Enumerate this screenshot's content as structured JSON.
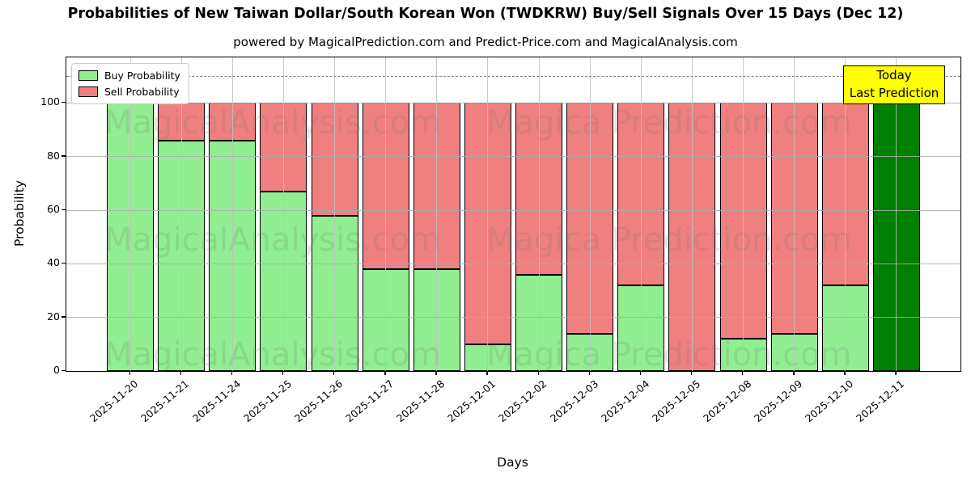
{
  "figure": {
    "title": "Probabilities of New Taiwan Dollar/South Korean Won (TWDKRW) Buy/Sell Signals Over 15 Days (Dec 12)",
    "subtitle": "powered by MagicalPrediction.com and Predict-Price.com and MagicalAnalysis.com"
  },
  "axes": {
    "xlabel": "Days",
    "ylabel": "Probability",
    "yticks": [
      0,
      20,
      40,
      60,
      80,
      100
    ],
    "ymax": 117,
    "threshold_dashed_y": 110,
    "grid": "on"
  },
  "legend": {
    "position": "upper-left",
    "items": [
      {
        "label": "Buy Probability",
        "color": "#90ee90"
      },
      {
        "label": "Sell Probability",
        "color": "#f08080"
      }
    ]
  },
  "annotation": {
    "line1": "Today",
    "line2": "Last Prediction",
    "bg_color": "#ffff00"
  },
  "watermarks": {
    "left": "MagicalAnalysis.com",
    "right": "Magica Prediction.com"
  },
  "chart_data": {
    "type": "bar",
    "stacked": true,
    "title": "Probabilities of New Taiwan Dollar/South Korean Won (TWDKRW) Buy/Sell Signals Over 15 Days (Dec 12)",
    "xlabel": "Days",
    "ylabel": "Probability",
    "ylim": [
      0,
      117
    ],
    "categories": [
      "2025-11-20",
      "2025-11-21",
      "2025-11-24",
      "2025-11-25",
      "2025-11-26",
      "2025-11-27",
      "2025-11-28",
      "2025-12-01",
      "2025-12-02",
      "2025-12-03",
      "2025-12-04",
      "2025-12-05",
      "2025-12-08",
      "2025-12-09",
      "2025-12-10",
      "2025-12-11"
    ],
    "series": [
      {
        "name": "Buy Probability",
        "color": "#90ee90",
        "values": [
          100,
          86,
          86,
          67,
          58,
          38,
          38,
          10,
          36,
          14,
          32,
          0,
          12,
          14,
          32,
          100
        ]
      },
      {
        "name": "Sell Probability",
        "color": "#f08080",
        "values": [
          0,
          14,
          14,
          33,
          42,
          62,
          62,
          90,
          64,
          86,
          68,
          100,
          88,
          86,
          68,
          0
        ]
      }
    ],
    "today_index": 15,
    "today_color": "#008000",
    "bar_edge_color": "#000000"
  }
}
